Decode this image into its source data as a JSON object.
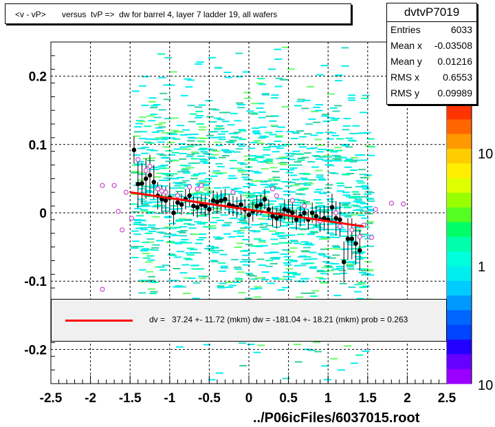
{
  "title": "<v - vP>       versus  tvP =>  dw for barrel 4, layer 7 ladder 19, all wafers",
  "file_label": "../P06icFiles/6037015.root",
  "stats": {
    "name": "dvtvP7019",
    "rows": [
      {
        "label": "Entries",
        "value": "6033"
      },
      {
        "label": "Mean x",
        "value": "-0.03508"
      },
      {
        "label": "Mean y",
        "value": "0.01216"
      },
      {
        "label": "RMS x",
        "value": "0.6553"
      },
      {
        "label": "RMS y",
        "value": "0.09989"
      }
    ]
  },
  "fit_legend": "dv =   37.24 +- 11.72 (mkm) dw = -181.04 +- 18.21 (mkm) prob = 0.263",
  "colors": {
    "fit": "#ff0000",
    "profile": "#000000",
    "open_marker": "#cc44cc",
    "accent": "#00eeee"
  },
  "chart_data": {
    "type": "heatmap",
    "xlim": [
      -2.5,
      2.5
    ],
    "ylim": [
      -0.25,
      0.25
    ],
    "x_ticks": [
      "-2.5",
      "-2",
      "-1.5",
      "-1",
      "-0.5",
      "0",
      "0.5",
      "1",
      "1.5",
      "2",
      "2.5"
    ],
    "y_ticks": [
      "-0.2",
      "-0.1",
      "0",
      "0.1",
      "0.2"
    ],
    "grid": true,
    "palette_labels": [
      "10",
      "1",
      "10"
    ],
    "fit_line": {
      "x": [
        -1.5,
        1.45
      ],
      "y": [
        0.03,
        -0.02
      ]
    },
    "profile_points": [
      {
        "x": -1.45,
        "y": 0.092,
        "e": 0.02
      },
      {
        "x": -1.4,
        "y": 0.042,
        "e": 0.035
      },
      {
        "x": -1.35,
        "y": 0.043,
        "e": 0.03
      },
      {
        "x": -1.3,
        "y": 0.05,
        "e": 0.03
      },
      {
        "x": -1.25,
        "y": 0.055,
        "e": 0.03
      },
      {
        "x": -1.2,
        "y": 0.045,
        "e": 0.025
      },
      {
        "x": -1.15,
        "y": 0.025,
        "e": 0.02
      },
      {
        "x": -1.1,
        "y": 0.02,
        "e": 0.02
      },
      {
        "x": -1.05,
        "y": 0.018,
        "e": 0.02
      },
      {
        "x": -1.0,
        "y": 0.022,
        "e": 0.02
      },
      {
        "x": -0.95,
        "y": 0.0,
        "e": 0.018
      },
      {
        "x": -0.9,
        "y": 0.015,
        "e": 0.015
      },
      {
        "x": -0.85,
        "y": 0.012,
        "e": 0.015
      },
      {
        "x": -0.8,
        "y": 0.02,
        "e": 0.015
      },
      {
        "x": -0.75,
        "y": 0.025,
        "e": 0.015
      },
      {
        "x": -0.7,
        "y": 0.01,
        "e": 0.015
      },
      {
        "x": -0.65,
        "y": 0.008,
        "e": 0.015
      },
      {
        "x": -0.6,
        "y": 0.012,
        "e": 0.015
      },
      {
        "x": -0.55,
        "y": 0.01,
        "e": 0.015
      },
      {
        "x": -0.5,
        "y": 0.005,
        "e": 0.015
      },
      {
        "x": -0.45,
        "y": 0.018,
        "e": 0.015
      },
      {
        "x": -0.4,
        "y": 0.016,
        "e": 0.015
      },
      {
        "x": -0.35,
        "y": 0.018,
        "e": 0.015
      },
      {
        "x": -0.3,
        "y": 0.02,
        "e": 0.015
      },
      {
        "x": -0.25,
        "y": 0.012,
        "e": 0.015
      },
      {
        "x": -0.2,
        "y": 0.01,
        "e": 0.015
      },
      {
        "x": -0.15,
        "y": 0.008,
        "e": 0.015
      },
      {
        "x": -0.1,
        "y": 0.012,
        "e": 0.015
      },
      {
        "x": -0.05,
        "y": 0.005,
        "e": 0.015
      },
      {
        "x": 0.0,
        "y": -0.003,
        "e": 0.015
      },
      {
        "x": 0.05,
        "y": 0.002,
        "e": 0.015
      },
      {
        "x": 0.1,
        "y": 0.01,
        "e": 0.015
      },
      {
        "x": 0.15,
        "y": 0.012,
        "e": 0.015
      },
      {
        "x": 0.2,
        "y": 0.02,
        "e": 0.015
      },
      {
        "x": 0.25,
        "y": 0.005,
        "e": 0.015
      },
      {
        "x": 0.3,
        "y": -0.005,
        "e": 0.015
      },
      {
        "x": 0.35,
        "y": -0.008,
        "e": 0.015
      },
      {
        "x": 0.4,
        "y": -0.005,
        "e": 0.015
      },
      {
        "x": 0.45,
        "y": 0.005,
        "e": 0.015
      },
      {
        "x": 0.5,
        "y": 0.003,
        "e": 0.015
      },
      {
        "x": 0.55,
        "y": 0.0,
        "e": 0.015
      },
      {
        "x": 0.6,
        "y": -0.01,
        "e": 0.015
      },
      {
        "x": 0.65,
        "y": -0.005,
        "e": 0.015
      },
      {
        "x": 0.7,
        "y": 0.0,
        "e": 0.015
      },
      {
        "x": 0.75,
        "y": -0.01,
        "e": 0.015
      },
      {
        "x": 0.8,
        "y": 0.0,
        "e": 0.015
      },
      {
        "x": 0.85,
        "y": -0.005,
        "e": 0.015
      },
      {
        "x": 0.9,
        "y": -0.01,
        "e": 0.018
      },
      {
        "x": 0.95,
        "y": -0.008,
        "e": 0.018
      },
      {
        "x": 1.0,
        "y": -0.01,
        "e": 0.02
      },
      {
        "x": 1.05,
        "y": 0.008,
        "e": 0.02
      },
      {
        "x": 1.1,
        "y": -0.008,
        "e": 0.025
      },
      {
        "x": 1.15,
        "y": -0.01,
        "e": 0.025
      },
      {
        "x": 1.2,
        "y": -0.072,
        "e": 0.03
      },
      {
        "x": 1.25,
        "y": -0.038,
        "e": 0.03
      },
      {
        "x": 1.3,
        "y": -0.038,
        "e": 0.03
      },
      {
        "x": 1.35,
        "y": -0.045,
        "e": 0.03
      },
      {
        "x": 1.4,
        "y": -0.055,
        "e": 0.03
      }
    ],
    "open_points": [
      {
        "x": -1.85,
        "y": -0.112
      },
      {
        "x": -1.85,
        "y": 0.04
      },
      {
        "x": -1.7,
        "y": 0.04
      },
      {
        "x": -1.65,
        "y": 0.002
      },
      {
        "x": -1.6,
        "y": -0.025
      },
      {
        "x": -1.55,
        "y": 0.03
      },
      {
        "x": -1.48,
        "y": -0.008
      },
      {
        "x": -1.4,
        "y": 0.078
      },
      {
        "x": -1.3,
        "y": 0.062
      },
      {
        "x": -1.25,
        "y": 0.068
      },
      {
        "x": -1.15,
        "y": 0.035
      },
      {
        "x": -1.1,
        "y": 0.032
      },
      {
        "x": -1.05,
        "y": 0.03
      },
      {
        "x": -0.9,
        "y": 0.025
      },
      {
        "x": -0.75,
        "y": 0.038
      },
      {
        "x": -0.65,
        "y": 0.035
      },
      {
        "x": -0.6,
        "y": 0.04
      },
      {
        "x": -0.2,
        "y": 0.03
      },
      {
        "x": 0.3,
        "y": 0.035
      },
      {
        "x": 0.35,
        "y": 0.025
      },
      {
        "x": 0.55,
        "y": 0.018
      },
      {
        "x": 0.7,
        "y": 0.01
      },
      {
        "x": 0.9,
        "y": -0.012
      },
      {
        "x": 1.1,
        "y": 0.0
      },
      {
        "x": 1.15,
        "y": -0.02
      },
      {
        "x": 1.3,
        "y": -0.025
      },
      {
        "x": 1.4,
        "y": -0.035
      },
      {
        "x": 1.45,
        "y": -0.018
      },
      {
        "x": 1.55,
        "y": -0.036
      },
      {
        "x": 1.6,
        "y": 0.005
      },
      {
        "x": 1.8,
        "y": 0.014
      },
      {
        "x": 1.95,
        "y": 0.013
      }
    ]
  }
}
